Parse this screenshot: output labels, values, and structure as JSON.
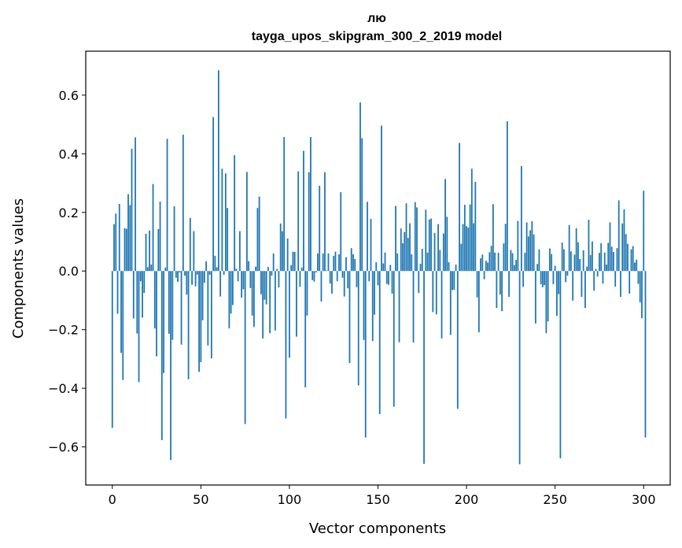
{
  "chart_data": {
    "type": "bar",
    "title": "лю",
    "subtitle": "tayga_upos_skipgram_300_2_2019 model",
    "xlabel": "Vector components",
    "ylabel": "Components values",
    "xlim": [
      -15,
      315
    ],
    "ylim": [
      -0.73,
      0.75
    ],
    "xticks": [
      0,
      50,
      100,
      150,
      200,
      250,
      300
    ],
    "yticks": [
      -0.6,
      -0.4,
      -0.2,
      0.0,
      0.2,
      0.4,
      0.6
    ],
    "ytick_labels": [
      "−0.6",
      "−0.4",
      "−0.2",
      "0.0",
      "0.2",
      "0.4",
      "0.6"
    ],
    "bar_color": "#1f77b4",
    "grid": false,
    "values": [
      -0.535,
      0.16,
      0.196,
      -0.146,
      0.229,
      -0.279,
      -0.372,
      0.146,
      0.144,
      0.262,
      0.225,
      0.417,
      -0.162,
      0.456,
      -0.213,
      -0.379,
      -0.035,
      -0.159,
      -0.075,
      0.127,
      0.013,
      0.138,
      0.022,
      0.297,
      -0.196,
      -0.291,
      0.143,
      0.237,
      -0.577,
      -0.348,
      0.012,
      0.451,
      -0.214,
      -0.645,
      -0.235,
      0.221,
      -0.023,
      -0.037,
      -0.005,
      -0.251,
      0.465,
      -0.016,
      -0.08,
      -0.369,
      0.181,
      -0.047,
      0.136,
      -0.052,
      -0.012,
      -0.344,
      -0.311,
      -0.168,
      -0.04,
      0.033,
      -0.254,
      -0.013,
      -0.298,
      0.525,
      0.052,
      0.013,
      0.685,
      -0.087,
      0.349,
      -0.013,
      0.333,
      0.215,
      -0.196,
      -0.145,
      -0.116,
      0.395,
      0.008,
      -0.035,
      0.136,
      -0.091,
      -0.062,
      -0.522,
      0.338,
      0.034,
      -0.058,
      -0.152,
      -0.191,
      0.015,
      0.215,
      0.254,
      -0.079,
      -0.23,
      -0.098,
      -0.114,
      0.014,
      -0.212,
      -0.016,
      0.06,
      -0.203,
      0.007,
      -0.056,
      0.162,
      0.136,
      0.457,
      -0.503,
      0.111,
      -0.296,
      0.02,
      0.066,
      0.065,
      -0.224,
      0.34,
      -0.054,
      0.012,
      0.41,
      -0.397,
      -0.152,
      0.337,
      0.457,
      -0.031,
      -0.036,
      -0.005,
      0.06,
      0.291,
      -0.104,
      0.06,
      0.337,
      0.002,
      0.06,
      -0.043,
      -0.077,
      0.052,
      0.066,
      -0.035,
      0.057,
      0.269,
      -0.023,
      -0.087,
      0.047,
      -0.059,
      -0.314,
      0.078,
      0.057,
      0.041,
      -0.055,
      -0.39,
      0.575,
      0.453,
      -0.235,
      -0.568,
      0.236,
      -0.035,
      0.178,
      -0.239,
      -0.149,
      0.03,
      -0.049,
      -0.488,
      0.496,
      0.026,
      0.063,
      -0.044,
      -0.047,
      0.021,
      -0.077,
      -0.463,
      0.222,
      0.06,
      -0.243,
      0.145,
      0.095,
      0.133,
      0.231,
      0.113,
      0.163,
      0.057,
      -0.244,
      0.235,
      0.217,
      -0.075,
      0.025,
      0.076,
      -0.658,
      0.209,
      0.063,
      0.176,
      0.179,
      -0.14,
      0.13,
      -0.148,
      0.16,
      0.072,
      -0.23,
      0.128,
      0.314,
      0.185,
      0.03,
      -0.218,
      -0.065,
      -0.064,
      0.022,
      -0.47,
      0.437,
      0.093,
      0.16,
      0.226,
      0.153,
      0.148,
      0.227,
      0.349,
      0.163,
      0.304,
      -0.09,
      -0.209,
      0.043,
      0.056,
      -0.028,
      0.035,
      0.029,
      0.064,
      0.086,
      0.228,
      0.063,
      -0.126,
      0.062,
      -0.08,
      -0.137,
      0.094,
      0.161,
      0.511,
      -0.088,
      0.072,
      0.061,
      0.02,
      0.038,
      0.171,
      -0.659,
      0.358,
      -0.054,
      0.062,
      0.166,
      0.118,
      0.139,
      0.17,
      0.125,
      -0.179,
      0.024,
      0.074,
      -0.045,
      -0.055,
      -0.048,
      -0.212,
      -0.172,
      0.077,
      0.058,
      -0.045,
      0.018,
      -0.153,
      -0.079,
      -0.639,
      0.097,
      0.074,
      -0.038,
      -0.016,
      0.157,
      0.067,
      -0.101,
      0.056,
      0.146,
      0.098,
      0.041,
      -0.088,
      0.071,
      -0.126,
      0.015,
      0.175,
      0.055,
      0.101,
      -0.067,
      0.007,
      -0.019,
      0.062,
      0.095,
      -0.043,
      0.063,
      0.022,
      0.096,
      0.166,
      0.083,
      0.065,
      -0.053,
      0.078,
      0.241,
      -0.088,
      0.162,
      0.211,
      0.126,
      0.093,
      -0.077,
      0.074,
      0.085,
      0.029,
      0.039,
      -0.044,
      -0.107,
      -0.161,
      0.274,
      -0.568
    ]
  }
}
